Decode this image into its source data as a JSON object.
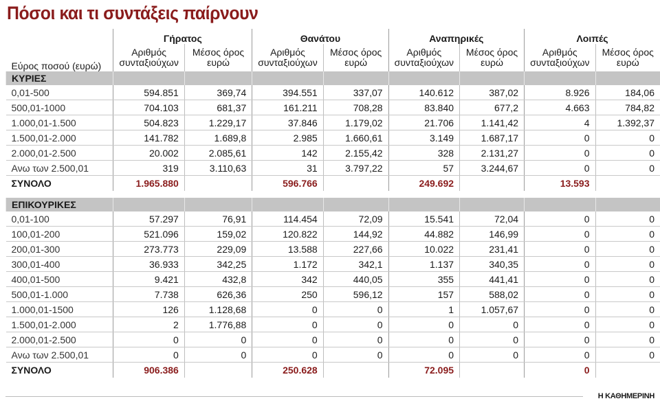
{
  "header": {
    "title": "Πόσοι και τι συντάξεις παίρνουν"
  },
  "table": {
    "row_header": "Εύρος ποσού (ευρώ)",
    "groups": [
      {
        "name": "Γήρατος",
        "columns": [
          "Αριθμός συνταξιούχων",
          "Μέσος όρος ευρώ"
        ]
      },
      {
        "name": "Θανάτου",
        "columns": [
          "Αριθμός συνταξιούχων",
          "Μέσος όρος ευρώ"
        ]
      },
      {
        "name": "Αναπηρικές",
        "columns": [
          "Αριθμός συνταξιούχων",
          "Μέσος όρος ευρώ"
        ]
      },
      {
        "name": "Λοιπές",
        "columns": [
          "Αριθμός συνταξιούχων",
          "Μέσος όρος ευρώ"
        ]
      }
    ],
    "sections": [
      {
        "title": "ΚΥΡΙΕΣ",
        "rows": [
          {
            "range": "0,01-500",
            "values": [
              "594.851",
              "369,74",
              "394.551",
              "337,07",
              "140.612",
              "387,02",
              "8.926",
              "184,06"
            ]
          },
          {
            "range": "500,01-1000",
            "values": [
              "704.103",
              "681,37",
              "161.211",
              "708,28",
              "83.840",
              "677,2",
              "4.663",
              "784,82"
            ]
          },
          {
            "range": "1.000,01-1.500",
            "values": [
              "504.823",
              "1.229,17",
              "37.846",
              "1.179,02",
              "21.706",
              "1.141,42",
              "4",
              "1.392,37"
            ]
          },
          {
            "range": "1.500,01-2.000",
            "values": [
              "141.782",
              "1.689,8",
              "2.985",
              "1.660,61",
              "3.149",
              "1.687,17",
              "0",
              "0"
            ]
          },
          {
            "range": "2.000,01-2.500",
            "values": [
              "20.002",
              "2.085,61",
              "142",
              "2.155,42",
              "328",
              "2.131,27",
              "0",
              "0"
            ]
          },
          {
            "range": "Ανω των 2.500,01",
            "values": [
              "319",
              "3.110,63",
              "31",
              "3.797,22",
              "57",
              "3.244,67",
              "0",
              "0"
            ]
          }
        ],
        "total": {
          "label": "ΣΥΝΟΛΟ",
          "values": [
            "1.965.880",
            "596.766",
            "249.692",
            "13.593"
          ]
        }
      },
      {
        "title": "ΕΠΙΚΟΥΡΙΚΕΣ",
        "rows": [
          {
            "range": "0,01-100",
            "values": [
              "57.297",
              "76,91",
              "114.454",
              "72,09",
              "15.541",
              "72,04",
              "0",
              "0"
            ]
          },
          {
            "range": "100,01-200",
            "values": [
              "521.096",
              "159,02",
              "120.822",
              "144,92",
              "44.882",
              "146,99",
              "0",
              "0"
            ]
          },
          {
            "range": "200,01-300",
            "values": [
              "273.773",
              "229,09",
              "13.588",
              "227,66",
              "10.022",
              "231,41",
              "0",
              "0"
            ]
          },
          {
            "range": "300,01-400",
            "values": [
              "36.933",
              "342,25",
              "1.172",
              "342,1",
              "1.137",
              "340,35",
              "0",
              "0"
            ]
          },
          {
            "range": "400,01-500",
            "values": [
              "9.421",
              "432,8",
              "342",
              "440,05",
              "355",
              "441,41",
              "0",
              "0"
            ]
          },
          {
            "range": "500,01-1.000",
            "values": [
              "7.738",
              "626,36",
              "250",
              "596,12",
              "157",
              "588,02",
              "0",
              "0"
            ]
          },
          {
            "range": "1.000,01-1500",
            "values": [
              "126",
              "1.128,68",
              "0",
              "0",
              "1",
              "1.057,67",
              "0",
              "0"
            ]
          },
          {
            "range": "1.500,01-2.000",
            "values": [
              "2",
              "1.776,88",
              "0",
              "0",
              "0",
              "0",
              "0",
              "0"
            ]
          },
          {
            "range": "2.000,01-2.500",
            "values": [
              "0",
              "0",
              "0",
              "0",
              "0",
              "0",
              "0",
              "0"
            ]
          },
          {
            "range": "Ανω των 2.500,01",
            "values": [
              "0",
              "0",
              "0",
              "0",
              "0",
              "0",
              "0",
              "0"
            ]
          }
        ],
        "total": {
          "label": "ΣΥΝΟΛΟ",
          "values": [
            "906.386",
            "250.628",
            "72.095",
            "0"
          ]
        }
      }
    ]
  },
  "footer": {
    "source": "Η ΚΑΘΗΜΕΡΙΝΗ"
  }
}
